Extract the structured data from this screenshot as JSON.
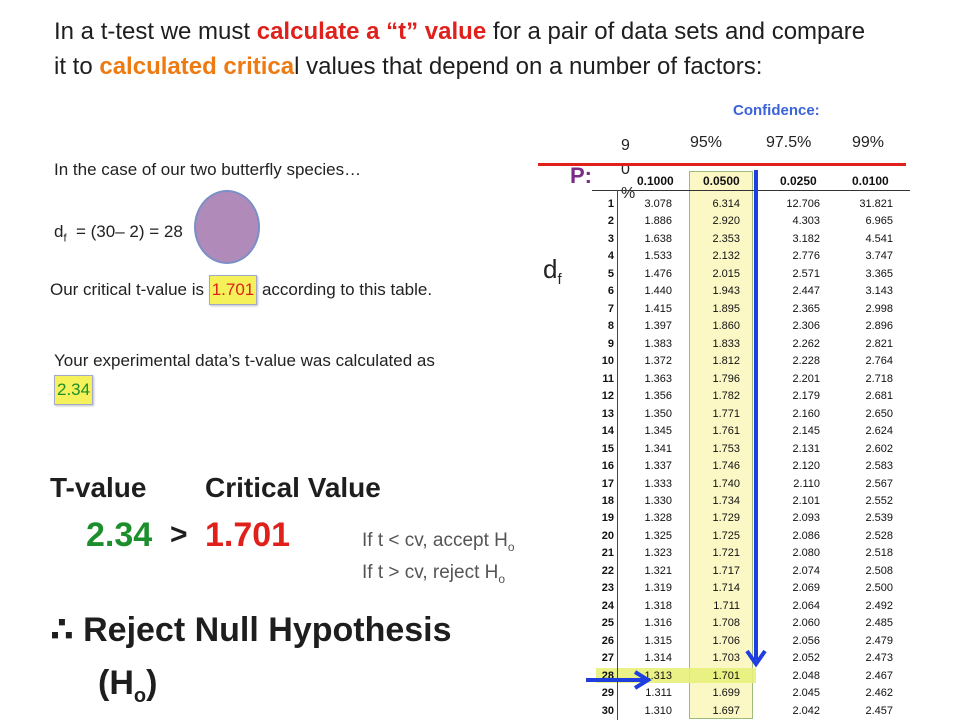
{
  "intro": {
    "part1": "In a t-test we must ",
    "part2": "calculate a “t” value",
    "part3": " for a pair of data sets and compare it to ",
    "part4": "calculated critica",
    "part5": "l values that depend on a number of factors:"
  },
  "butterfly_line": "In the case of our two butterfly species…",
  "df_equation": {
    "prefix": "d",
    "sub": "f",
    "rest": "  = (30– 2) = 28"
  },
  "critical_text": {
    "pre": "Our critical t-value is ",
    "value": "1.701",
    "post": " according to this table."
  },
  "experimental_text": {
    "pre": "Your experimental data’s t-value was calculated as ",
    "value": "2.34"
  },
  "comparison": {
    "tvalue_label": "T-value",
    "critical_label": "Critical Value",
    "tvalue": "2.34",
    "symbol": ">",
    "critical": "1.701"
  },
  "rules": {
    "line1": "If t < cv, accept H",
    "line1_sub": "o",
    "line2": "If t > cv, reject H",
    "line2_sub": "o"
  },
  "conclusion": {
    "line1": "∴ Reject Null Hypothesis",
    "line2_pre": "(H",
    "line2_sub": "o",
    "line2_post": ")"
  },
  "table_panel": {
    "heading": "Confidence:",
    "percents": [
      "95%",
      "97.5%",
      "99%"
    ],
    "partial_pct": [
      "9",
      "0",
      "%"
    ],
    "p_label": "P:",
    "df_label": "d",
    "df_sub": "f",
    "col_headers": [
      "0.1000",
      "0.0500",
      "0.0250",
      "0.0100"
    ],
    "rows": [
      [
        "1",
        "3.078",
        "6.314",
        "12.706",
        "31.821"
      ],
      [
        "2",
        "1.886",
        "2.920",
        "4.303",
        "6.965"
      ],
      [
        "3",
        "1.638",
        "2.353",
        "3.182",
        "4.541"
      ],
      [
        "4",
        "1.533",
        "2.132",
        "2.776",
        "3.747"
      ],
      [
        "5",
        "1.476",
        "2.015",
        "2.571",
        "3.365"
      ],
      [
        "6",
        "1.440",
        "1.943",
        "2.447",
        "3.143"
      ],
      [
        "7",
        "1.415",
        "1.895",
        "2.365",
        "2.998"
      ],
      [
        "8",
        "1.397",
        "1.860",
        "2.306",
        "2.896"
      ],
      [
        "9",
        "1.383",
        "1.833",
        "2.262",
        "2.821"
      ],
      [
        "10",
        "1.372",
        "1.812",
        "2.228",
        "2.764"
      ],
      [
        "11",
        "1.363",
        "1.796",
        "2.201",
        "2.718"
      ],
      [
        "12",
        "1.356",
        "1.782",
        "2.179",
        "2.681"
      ],
      [
        "13",
        "1.350",
        "1.771",
        "2.160",
        "2.650"
      ],
      [
        "14",
        "1.345",
        "1.761",
        "2.145",
        "2.624"
      ],
      [
        "15",
        "1.341",
        "1.753",
        "2.131",
        "2.602"
      ],
      [
        "16",
        "1.337",
        "1.746",
        "2.120",
        "2.583"
      ],
      [
        "17",
        "1.333",
        "1.740",
        "2.110",
        "2.567"
      ],
      [
        "18",
        "1.330",
        "1.734",
        "2.101",
        "2.552"
      ],
      [
        "19",
        "1.328",
        "1.729",
        "2.093",
        "2.539"
      ],
      [
        "20",
        "1.325",
        "1.725",
        "2.086",
        "2.528"
      ],
      [
        "21",
        "1.323",
        "1.721",
        "2.080",
        "2.518"
      ],
      [
        "22",
        "1.321",
        "1.717",
        "2.074",
        "2.508"
      ],
      [
        "23",
        "1.319",
        "1.714",
        "2.069",
        "2.500"
      ],
      [
        "24",
        "1.318",
        "1.711",
        "2.064",
        "2.492"
      ],
      [
        "25",
        "1.316",
        "1.708",
        "2.060",
        "2.485"
      ],
      [
        "26",
        "1.315",
        "1.706",
        "2.056",
        "2.479"
      ],
      [
        "27",
        "1.314",
        "1.703",
        "2.052",
        "2.473"
      ],
      [
        "28",
        "1.313",
        "1.701",
        "2.048",
        "2.467"
      ],
      [
        "29",
        "1.311",
        "1.699",
        "2.045",
        "2.462"
      ],
      [
        "30",
        "1.310",
        "1.697",
        "2.042",
        "2.457"
      ]
    ]
  },
  "colors": {
    "red": "#e0201b",
    "orange": "#ee7a12",
    "green": "#1c8f2c",
    "blue": "#1f3ee0",
    "highlight": "#f4f15a"
  }
}
